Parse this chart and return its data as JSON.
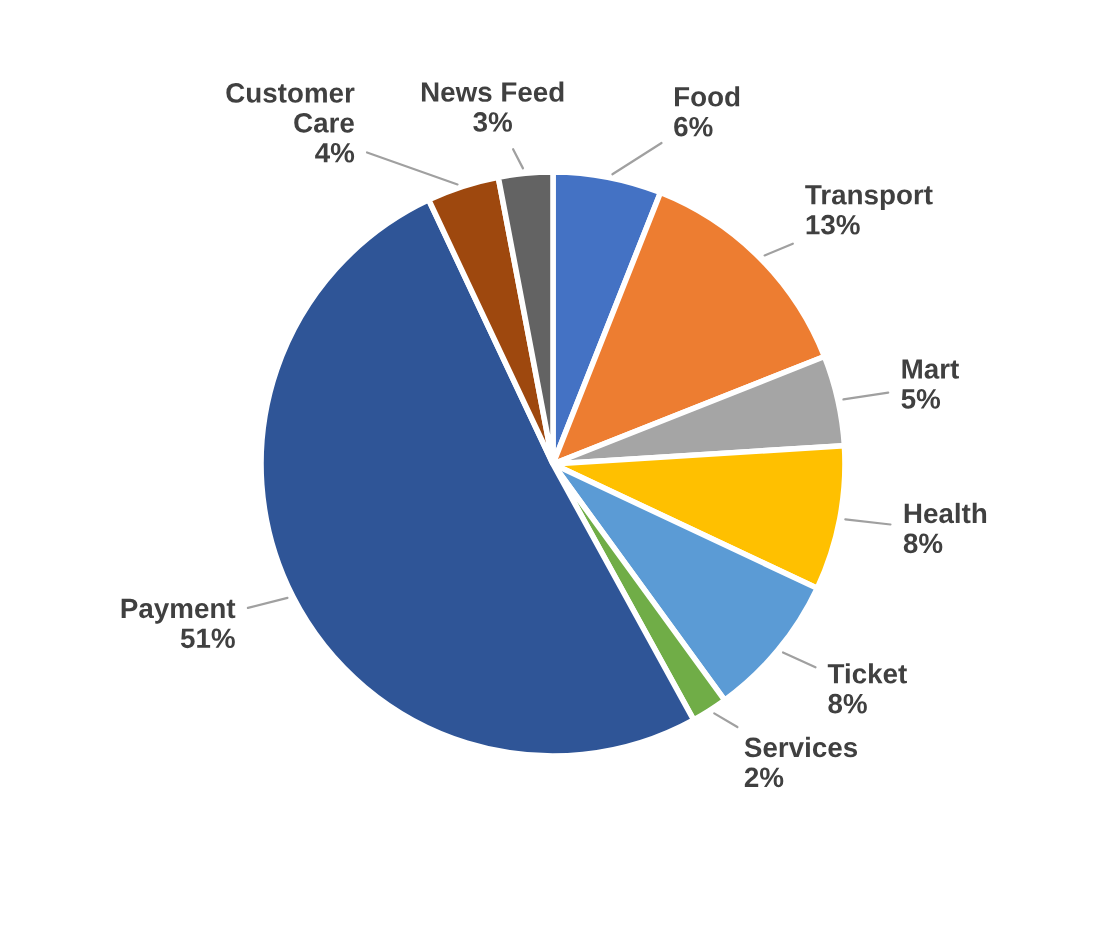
{
  "chart_data": {
    "type": "pie",
    "categories": [
      "Food",
      "Transport",
      "Mart",
      "Health",
      "Ticket",
      "Services",
      "Payment",
      "Customer Care",
      "News Feed"
    ],
    "values": [
      6,
      13,
      5,
      8,
      8,
      2,
      51,
      4,
      3
    ],
    "colors": [
      "#4472c4",
      "#ed7d31",
      "#a5a5a5",
      "#ffc000",
      "#5b9bd5",
      "#70ad47",
      "#2f5597",
      "#9e480e",
      "#636363"
    ],
    "value_labels": [
      "6%",
      "13%",
      "5%",
      "8%",
      "8%",
      "2%",
      "51%",
      "4%",
      "3%"
    ],
    "legend": false
  }
}
